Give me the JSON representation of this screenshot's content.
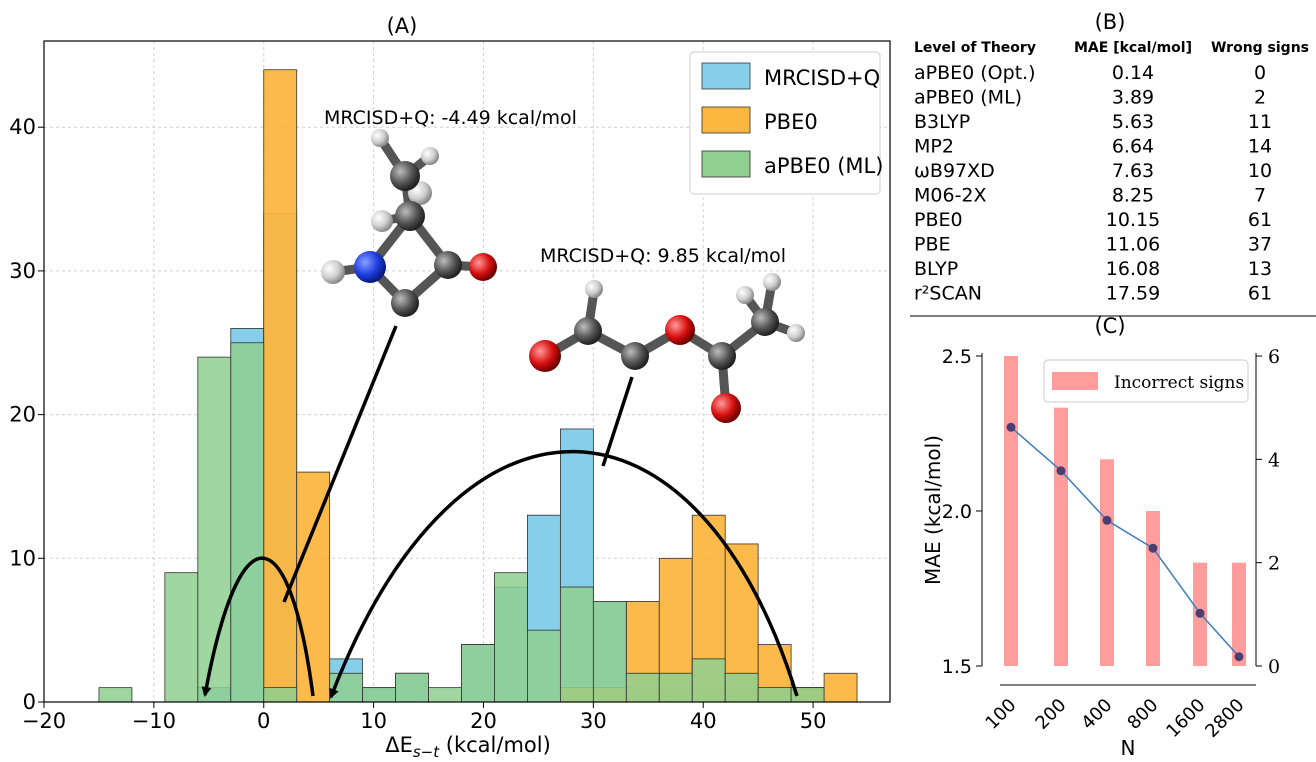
{
  "panel_labels": {
    "a": "(A)",
    "b": "(B)",
    "c": "(C)"
  },
  "chart_data": [
    {
      "type": "histogram",
      "panel": "(A)",
      "xlabel": "ΔE",
      "xlabel_sub": "s−t",
      "xlabel_unit": " (kcal/mol)",
      "xlim": [
        -20,
        57
      ],
      "ylim": [
        0,
        46
      ],
      "xticks": [
        -20,
        -10,
        0,
        10,
        20,
        30,
        40,
        50
      ],
      "xtick_labels": [
        "−20",
        "−10",
        "0",
        "10",
        "20",
        "30",
        "40",
        "50"
      ],
      "yticks": [
        0,
        10,
        20,
        30,
        40
      ],
      "bin_width": 3,
      "grid": true,
      "legend_position": "top-right",
      "series": [
        {
          "name": "MRCISD+Q",
          "color": "#87ceeb",
          "bins": [
            [
              -6,
              1
            ],
            [
              -3,
              26
            ],
            [
              0,
              34
            ],
            [
              6,
              3
            ],
            [
              9,
              1
            ],
            [
              12,
              2
            ],
            [
              18,
              4
            ],
            [
              21,
              8
            ],
            [
              24,
              13
            ],
            [
              27,
              19
            ],
            [
              30,
              7
            ],
            [
              33,
              1
            ],
            [
              36,
              1
            ],
            [
              39,
              1
            ],
            [
              42,
              1
            ],
            [
              45,
              1
            ],
            [
              48,
              1
            ]
          ]
        },
        {
          "name": "PBE0",
          "color": "#fbb63f",
          "bins": [
            [
              0,
              44
            ],
            [
              3,
              16
            ],
            [
              27,
              1
            ],
            [
              30,
              1
            ],
            [
              33,
              7
            ],
            [
              36,
              10
            ],
            [
              39,
              13
            ],
            [
              42,
              11
            ],
            [
              45,
              4
            ],
            [
              48,
              1
            ],
            [
              51,
              2
            ]
          ]
        },
        {
          "name": "aPBE0 (ML)",
          "color": "#8fcf8f",
          "bins": [
            [
              -15,
              1
            ],
            [
              -9,
              9
            ],
            [
              -6,
              24
            ],
            [
              -3,
              25
            ],
            [
              0,
              1
            ],
            [
              6,
              2
            ],
            [
              9,
              1
            ],
            [
              12,
              2
            ],
            [
              15,
              1
            ],
            [
              18,
              4
            ],
            [
              21,
              9
            ],
            [
              24,
              5
            ],
            [
              27,
              8
            ],
            [
              30,
              7
            ],
            [
              33,
              2
            ],
            [
              36,
              2
            ],
            [
              39,
              3
            ],
            [
              42,
              2
            ],
            [
              45,
              1
            ],
            [
              48,
              1
            ]
          ]
        }
      ],
      "annotations": [
        {
          "text": "MRCISD+Q: -4.49 kcal/mol"
        },
        {
          "text": "MRCISD+Q: 9.85 kcal/mol"
        }
      ]
    },
    {
      "type": "bar+line",
      "panel": "(C)",
      "xlabel": "N",
      "ylabel": "MAE (kcal/mol)",
      "categories": [
        "100",
        "200",
        "400",
        "800",
        "1600",
        "2800"
      ],
      "bar_series": {
        "name": "Incorrect signs",
        "color": "#ff8c8c",
        "values": [
          6,
          5,
          4,
          3,
          2,
          2
        ]
      },
      "line_series": {
        "color": "#3a7dbf",
        "marker_color": "#4b3f72",
        "values": [
          2.27,
          2.13,
          1.97,
          1.88,
          1.67,
          1.53
        ]
      },
      "y_left_lim": [
        1.5,
        2.5
      ],
      "y_left_ticks": [
        1.5,
        2.0,
        2.5
      ],
      "y_left_tick_labels": [
        "1.5",
        "2.0",
        "2.5"
      ],
      "y_right_lim": [
        0,
        6
      ],
      "y_right_ticks": [
        0,
        2,
        4,
        6
      ],
      "y_right_tick_labels": [
        "0",
        "2",
        "4",
        "6"
      ],
      "legend_position": "top-right"
    }
  ],
  "table": {
    "headers": [
      "Level of Theory",
      "MAE [kcal/mol]",
      "Wrong signs"
    ],
    "rows": [
      [
        "aPBE0 (Opt.)",
        "0.14",
        "0"
      ],
      [
        "aPBE0 (ML)",
        "3.89",
        "2"
      ],
      [
        "B3LYP",
        "5.63",
        "11"
      ],
      [
        "MP2",
        "6.64",
        "14"
      ],
      [
        "ωB97XD",
        "7.63",
        "10"
      ],
      [
        "M06-2X",
        "8.25",
        "7"
      ],
      [
        "PBE0",
        "10.15",
        "61"
      ],
      [
        "PBE",
        "11.06",
        "37"
      ],
      [
        "BLYP",
        "16.08",
        "13"
      ],
      [
        "r²SCAN",
        "17.59",
        "61"
      ]
    ]
  },
  "colors": {
    "atom_c": "#555555",
    "atom_n": "#1f3fe0",
    "atom_o": "#d81010",
    "atom_h": "#cccccc"
  }
}
